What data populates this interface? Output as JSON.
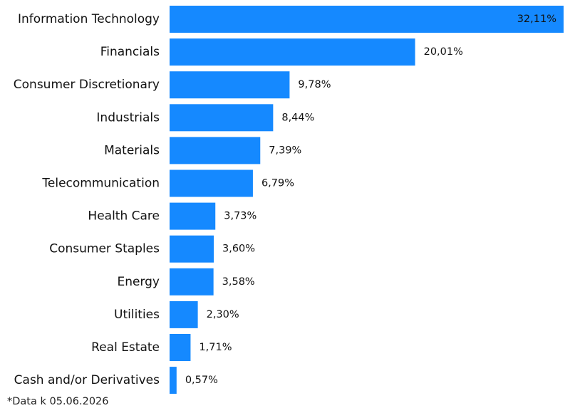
{
  "chart_data": {
    "type": "bar",
    "orientation": "horizontal",
    "categories": [
      "Information Technology",
      "Financials",
      "Consumer Discretionary",
      "Industrials",
      "Materials",
      "Telecommunication",
      "Health Care",
      "Consumer Staples",
      "Energy",
      "Utilities",
      "Real Estate",
      "Cash and/or Derivatives"
    ],
    "values": [
      32.11,
      20.01,
      9.78,
      8.44,
      7.39,
      6.79,
      3.73,
      3.6,
      3.58,
      2.3,
      1.71,
      0.57
    ],
    "value_labels": [
      "32,11%",
      "20,01%",
      "9,78%",
      "8,44%",
      "7,39%",
      "6,79%",
      "3,73%",
      "3,60%",
      "3,58%",
      "2,30%",
      "1,71%",
      "0,57%"
    ],
    "bar_color": "#1589FF",
    "xlim": [
      0,
      32.11
    ],
    "grid": false,
    "legend": "none"
  },
  "footnote": "*Data k 05.06.2026"
}
